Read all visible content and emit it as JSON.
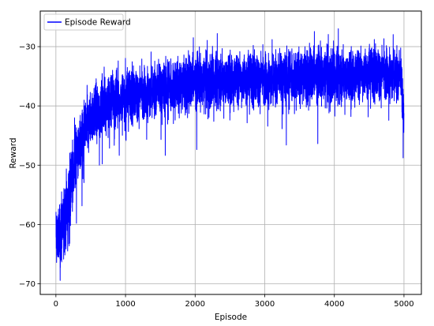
{
  "chart_data": {
    "type": "line",
    "title": "",
    "xlabel": "Episode",
    "ylabel": "Reward",
    "xlim": [
      -225,
      5250
    ],
    "ylim": [
      -71.8,
      -24.0
    ],
    "xticks": [
      0,
      1000,
      2000,
      3000,
      4000,
      5000
    ],
    "yticks": [
      -70,
      -60,
      -50,
      -40,
      -30
    ],
    "xtick_labels": [
      "0",
      "1000",
      "2000",
      "3000",
      "4000",
      "5000"
    ],
    "ytick_labels": [
      "−70",
      "−60",
      "−50",
      "−40",
      "−30"
    ],
    "grid": true,
    "legend": {
      "position": "upper-left"
    },
    "series": [
      {
        "name": "Episode Reward",
        "color": "#0000ff",
        "trend": {
          "x": [
            0,
            50,
            100,
            150,
            200,
            250,
            300,
            400,
            500,
            600,
            700,
            800,
            900,
            1000,
            1200,
            1400,
            1600,
            1800,
            2000,
            2200,
            2500,
            2800,
            3000,
            3200,
            3500,
            3800,
            4000,
            4200,
            4400,
            4600,
            4800,
            4950,
            5000
          ],
          "y": [
            -61,
            -63,
            -60,
            -57,
            -54,
            -51,
            -48,
            -45,
            -42,
            -41,
            -40,
            -39,
            -39,
            -38.5,
            -38,
            -37.5,
            -37,
            -36.5,
            -36,
            -36,
            -35.5,
            -35.5,
            -35.5,
            -35.5,
            -35,
            -35,
            -35,
            -35,
            -34.5,
            -34.5,
            -34.5,
            -35,
            -42
          ]
        },
        "noise_amplitude": 3.4,
        "n_points": 5000
      }
    ]
  }
}
